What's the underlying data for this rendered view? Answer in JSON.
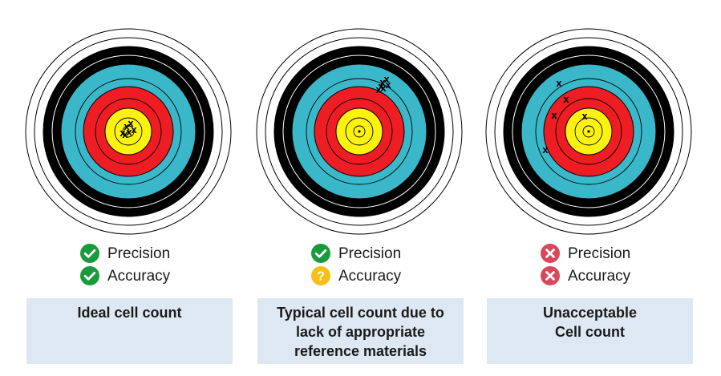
{
  "colors": {
    "white_ring": "#ffffff",
    "black_ring": "#000000",
    "blue_ring": "#3ab7c9",
    "red_ring": "#ee1d23",
    "yellow_ring": "#fbf20f",
    "check_green": "#1a9a3c",
    "question_yellow": "#f5bf16",
    "cross_red": "#d6495a",
    "caption_bg": "#dde8f3"
  },
  "panels": [
    {
      "precision": {
        "label": "Precision",
        "status": "check",
        "icon": "check-circle-icon"
      },
      "accuracy": {
        "label": "Accuracy",
        "status": "check",
        "icon": "check-circle-icon"
      },
      "caption": "Ideal cell count",
      "marks": [
        {
          "label": "x"
        },
        {
          "label": "x"
        },
        {
          "label": "x"
        },
        {
          "label": "x"
        },
        {
          "label": "x"
        },
        {
          "label": "x"
        }
      ]
    },
    {
      "precision": {
        "label": "Precision",
        "status": "check",
        "icon": "check-circle-icon"
      },
      "accuracy": {
        "label": "Accuracy",
        "status": "question",
        "icon": "question-circle-icon",
        "symbol": "?"
      },
      "caption": "Typical cell count due to\nlack of appropriate\nreference materials",
      "marks": [
        {
          "label": "x"
        },
        {
          "label": "x"
        },
        {
          "label": "x"
        },
        {
          "label": "x"
        },
        {
          "label": "x"
        },
        {
          "label": "x"
        }
      ]
    },
    {
      "precision": {
        "label": "Precision",
        "status": "cross",
        "icon": "cross-circle-icon"
      },
      "accuracy": {
        "label": "Accuracy",
        "status": "cross",
        "icon": "cross-circle-icon"
      },
      "caption": "Unacceptable\nCell count",
      "marks": [
        {
          "label": "x"
        },
        {
          "label": "x"
        },
        {
          "label": "x"
        },
        {
          "label": "x"
        },
        {
          "label": "x"
        }
      ]
    }
  ]
}
